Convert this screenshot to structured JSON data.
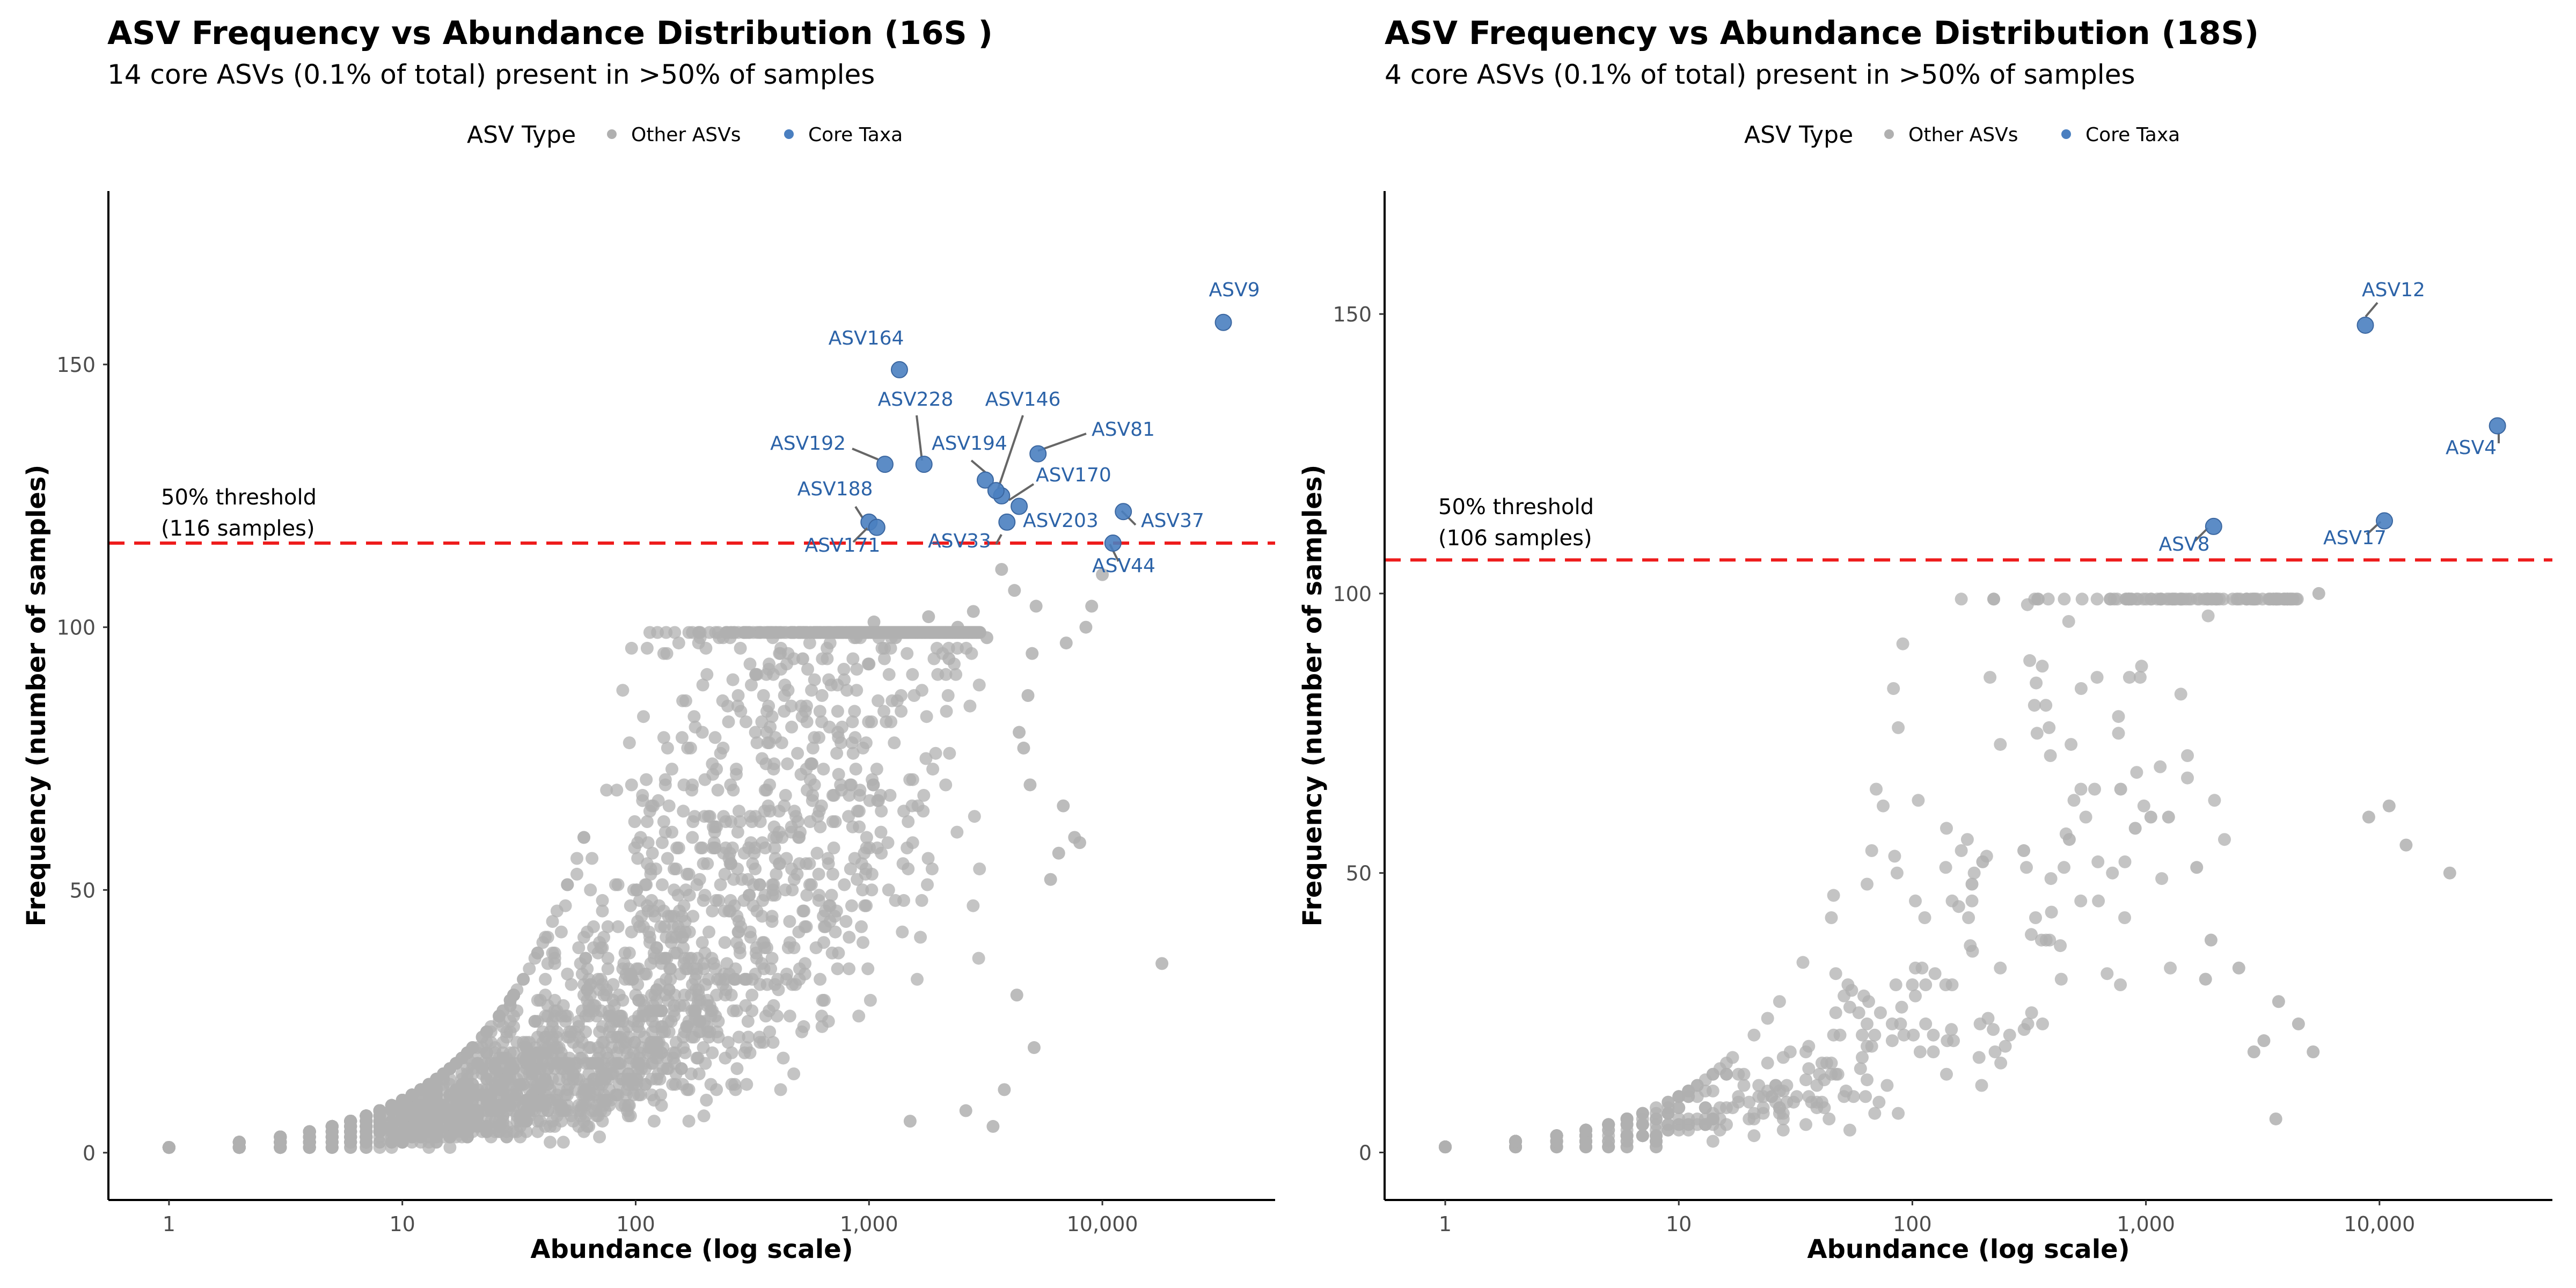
{
  "chart_data": [
    {
      "type": "scatter",
      "title": "ASV Frequency vs Abundance Distribution (16S )",
      "subtitle": "14 core ASVs (0.1% of total) present in >50% of samples",
      "xlabel": "Abundance (log scale)",
      "ylabel": "Frequency (number of samples)",
      "x_scale": "log10",
      "xlim": [
        0.55,
        55000
      ],
      "ylim": [
        -9,
        183
      ],
      "x_ticks": [
        1,
        10,
        100,
        1000,
        10000
      ],
      "x_tick_labels": [
        "1",
        "10",
        "100",
        "1,000",
        "10,000"
      ],
      "y_ticks": [
        0,
        50,
        100,
        150
      ],
      "y_tick_labels": [
        "0",
        "50",
        "100",
        "150"
      ],
      "grid": false,
      "legend": {
        "title": "ASV Type",
        "placement": "top",
        "items": [
          "Other ASVs",
          "Core Taxa"
        ]
      },
      "threshold": {
        "y": 116,
        "label_line1": "50% threshold",
        "label_line2": "(116 samples)",
        "color": "#ee1c1c"
      },
      "background_cloud": {
        "n": 4200,
        "max_abundance": 3000,
        "seed": 11
      },
      "series": [
        {
          "name": "Core Taxa",
          "color": "#4a7fc0",
          "points": [
            {
              "label": "ASV9",
              "x": 33000,
              "y": 158
            },
            {
              "label": "ASV164",
              "x": 1350,
              "y": 149
            },
            {
              "label": "ASV81",
              "x": 5300,
              "y": 133
            },
            {
              "label": "ASV228",
              "x": 1720,
              "y": 131
            },
            {
              "label": "ASV192",
              "x": 1170,
              "y": 131
            },
            {
              "label": "ASV194",
              "x": 3150,
              "y": 128
            },
            {
              "label": "ASV146",
              "x": 3700,
              "y": 125
            },
            {
              "label": "ASV170",
              "x": 4400,
              "y": 123
            },
            {
              "label": "ASV37",
              "x": 12300,
              "y": 122
            },
            {
              "label": "ASV203",
              "x": 3900,
              "y": 120
            },
            {
              "label": "ASV188",
              "x": 1000,
              "y": 120
            },
            {
              "label": "ASV171",
              "x": 1080,
              "y": 119
            },
            {
              "label": "ASV44",
              "x": 11100,
              "y": 116
            },
            {
              "label": "ASV33",
              "x": 3500,
              "y": 126
            }
          ]
        },
        {
          "name": "Other ASVs",
          "color": "#b0b0b0",
          "points": [
            {
              "x": 18000,
              "y": 36
            },
            {
              "x": 10000,
              "y": 110
            },
            {
              "x": 9000,
              "y": 104
            },
            {
              "x": 8500,
              "y": 100
            },
            {
              "x": 7000,
              "y": 97
            },
            {
              "x": 5200,
              "y": 104
            },
            {
              "x": 5000,
              "y": 95
            },
            {
              "x": 4800,
              "y": 87
            },
            {
              "x": 4200,
              "y": 107
            },
            {
              "x": 3700,
              "y": 111
            },
            {
              "x": 3200,
              "y": 98
            },
            {
              "x": 2800,
              "y": 103
            },
            {
              "x": 2400,
              "y": 100
            },
            {
              "x": 2200,
              "y": 94
            },
            {
              "x": 1800,
              "y": 102
            },
            {
              "x": 1300,
              "y": 98
            },
            {
              "x": 1050,
              "y": 101
            },
            {
              "x": 1000,
              "y": 93
            },
            {
              "x": 520,
              "y": 94
            },
            {
              "x": 8000,
              "y": 59
            },
            {
              "x": 7600,
              "y": 60
            },
            {
              "x": 6800,
              "y": 66
            },
            {
              "x": 6500,
              "y": 57
            },
            {
              "x": 6000,
              "y": 52
            },
            {
              "x": 4900,
              "y": 70
            },
            {
              "x": 4600,
              "y": 77
            },
            {
              "x": 4400,
              "y": 80
            },
            {
              "x": 5100,
              "y": 20
            },
            {
              "x": 4300,
              "y": 30
            },
            {
              "x": 3800,
              "y": 12
            },
            {
              "x": 3400,
              "y": 5
            },
            {
              "x": 2600,
              "y": 8
            },
            {
              "x": 1500,
              "y": 6
            }
          ]
        }
      ]
    },
    {
      "type": "scatter",
      "title": "ASV Frequency vs Abundance Distribution (18S)",
      "subtitle": "4 core ASVs (0.1% of total) present in >50% of samples",
      "xlabel": "Abundance (log scale)",
      "ylabel": "Frequency (number of samples)",
      "x_scale": "log10",
      "xlim": [
        0.55,
        55000
      ],
      "ylim": [
        -8.5,
        172
      ],
      "x_ticks": [
        1,
        10,
        100,
        1000,
        10000
      ],
      "x_tick_labels": [
        "1",
        "10",
        "100",
        "1,000",
        "10,000"
      ],
      "y_ticks": [
        0,
        50,
        100,
        150
      ],
      "y_tick_labels": [
        "0",
        "50",
        "100",
        "150"
      ],
      "grid": false,
      "legend": {
        "title": "ASV Type",
        "placement": "top",
        "items": [
          "Other ASVs",
          "Core Taxa"
        ]
      },
      "threshold": {
        "y": 106,
        "label_line1": "50% threshold",
        "label_line2": "(106 samples)",
        "color": "#ee1c1c"
      },
      "background_cloud": {
        "n": 650,
        "max_abundance": 4500,
        "seed": 29
      },
      "series": [
        {
          "name": "Core Taxa",
          "color": "#4a7fc0",
          "points": [
            {
              "label": "ASV12",
              "x": 8700,
              "y": 148
            },
            {
              "label": "ASV4",
              "x": 32000,
              "y": 130
            },
            {
              "label": "ASV17",
              "x": 10500,
              "y": 113
            },
            {
              "label": "ASV8",
              "x": 1950,
              "y": 112
            }
          ]
        },
        {
          "name": "Other ASVs",
          "color": "#b0b0b0",
          "points": [
            {
              "x": 5500,
              "y": 100
            },
            {
              "x": 11000,
              "y": 62
            },
            {
              "x": 9000,
              "y": 60
            },
            {
              "x": 13000,
              "y": 55
            },
            {
              "x": 20000,
              "y": 50
            },
            {
              "x": 3700,
              "y": 27
            },
            {
              "x": 4500,
              "y": 23
            },
            {
              "x": 3200,
              "y": 20
            },
            {
              "x": 2900,
              "y": 18
            },
            {
              "x": 5200,
              "y": 18
            },
            {
              "x": 3600,
              "y": 6
            },
            {
              "x": 2500,
              "y": 33
            },
            {
              "x": 1900,
              "y": 38
            },
            {
              "x": 1800,
              "y": 31
            },
            {
              "x": 1650,
              "y": 51
            },
            {
              "x": 1250,
              "y": 60
            },
            {
              "x": 1050,
              "y": 60
            },
            {
              "x": 780,
              "y": 65
            },
            {
              "x": 900,
              "y": 58
            },
            {
              "x": 470,
              "y": 56
            },
            {
              "x": 300,
              "y": 54
            },
            {
              "x": 200,
              "y": 52
            },
            {
              "x": 180,
              "y": 48
            }
          ]
        }
      ]
    }
  ]
}
